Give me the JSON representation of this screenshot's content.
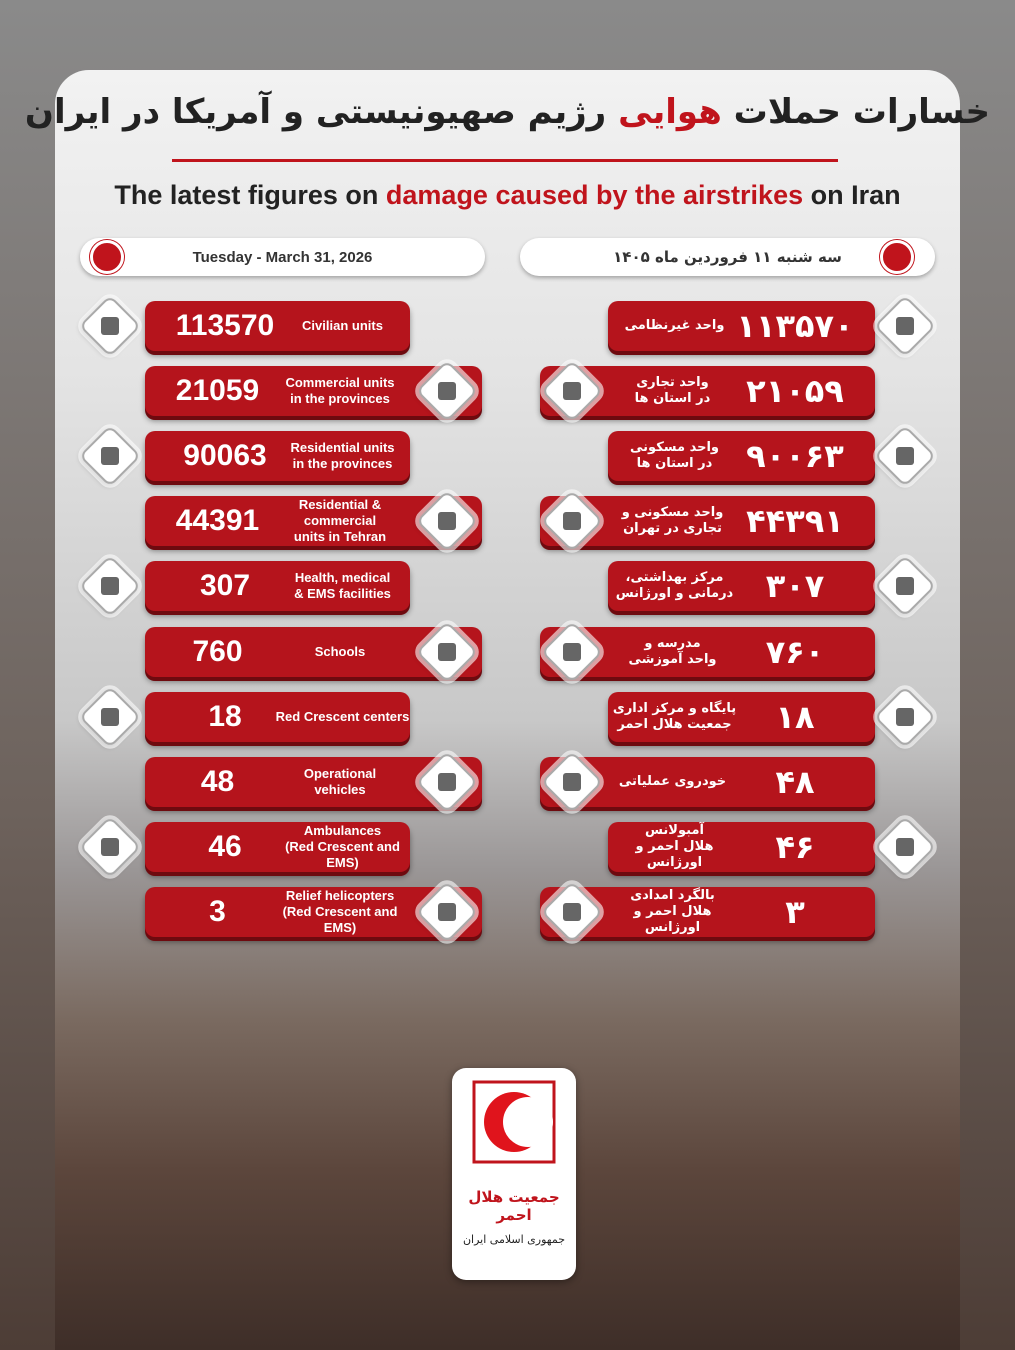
{
  "header": {
    "title_fa": {
      "before": "خسارات حملات",
      "highlight": "هوایی",
      "after": "رژیم صهیونیستی و آمریکا در ایران"
    },
    "title_en": {
      "before": "The latest figures on",
      "highlight": "damage caused by the airstrikes",
      "after": "on Iran"
    },
    "date_en": "Tuesday - March 31, 2026",
    "date_fa": "سه شنبه ۱۱ فروردین ماه ۱۴۰۵"
  },
  "items": [
    {
      "en_value": 113570,
      "en_label": [
        "Civilian units"
      ],
      "fa_value": "۱۱۳۵۷۰",
      "fa_label": [
        "واحد غیرنظامی"
      ]
    },
    {
      "en_value": 21059,
      "en_label": [
        "Commercial units",
        "in the provinces"
      ],
      "fa_value": "۲۱۰۵۹",
      "fa_label": [
        "واحد تجاری",
        "در استان ها"
      ]
    },
    {
      "en_value": 90063,
      "en_label": [
        "Residential units",
        "in the provinces"
      ],
      "fa_value": "۹۰۰۶۳",
      "fa_label": [
        "واحد مسکونی",
        "در استان ها"
      ]
    },
    {
      "en_value": 44391,
      "en_label": [
        "Residential &",
        "commercial",
        "units in Tehran"
      ],
      "fa_value": "۴۴۳۹۱",
      "fa_label": [
        "واحد مسکونی و",
        "تجاری در تهران"
      ]
    },
    {
      "en_value": 307,
      "en_label": [
        "Health, medical",
        "& EMS facilities"
      ],
      "fa_value": "۳۰۷",
      "fa_label": [
        "مرکز بهداشتی،",
        "درمانی و اورژانس"
      ]
    },
    {
      "en_value": 760,
      "en_label": [
        "Schools"
      ],
      "fa_value": "۷۶۰",
      "fa_label": [
        "مدرسه و",
        "واحد آموزشی"
      ]
    },
    {
      "en_value": 18,
      "en_label": [
        "Red Crescent centers"
      ],
      "fa_value": "۱۸",
      "fa_label": [
        "پایگاه و مرکز اداری",
        "جمعیت هلال احمر"
      ]
    },
    {
      "en_value": 48,
      "en_label": [
        "Operational",
        "vehicles"
      ],
      "fa_value": "۴۸",
      "fa_label": [
        "خودروی عملیاتی"
      ]
    },
    {
      "en_value": 46,
      "en_label": [
        "Ambulances",
        "(Red Crescent and EMS)"
      ],
      "fa_value": "۴۶",
      "fa_label": [
        "آمبولانس",
        "هلال احمر و اورژانس"
      ]
    },
    {
      "en_value": 3,
      "en_label": [
        "Relief helicopters",
        "(Red Crescent and EMS)"
      ],
      "fa_value": "۳",
      "fa_label": [
        "بالگرد امدادی",
        "هلال احمر و اورژانس"
      ]
    }
  ],
  "logo": {
    "name": "جمعیت هلال احمر",
    "country": "جمهوری اسلامی ایران"
  }
}
